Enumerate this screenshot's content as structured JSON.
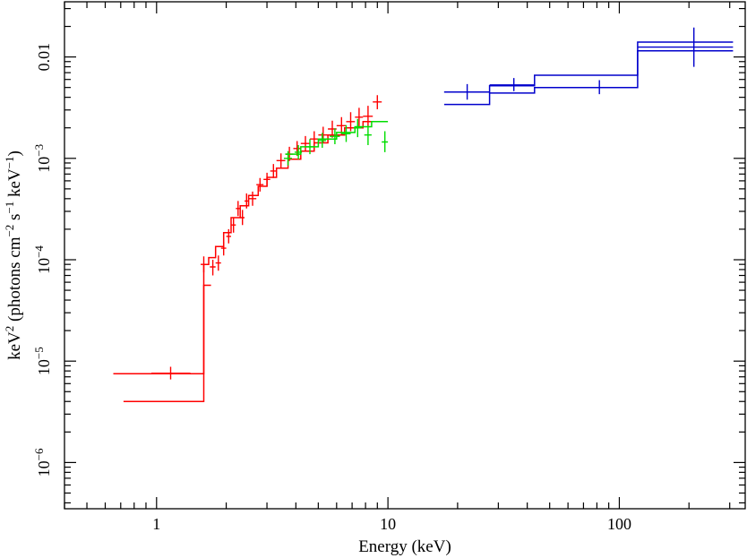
{
  "chart_data": {
    "type": "scatter",
    "title": "",
    "xlabel": "Energy (keV)",
    "ylabel_parts": {
      "a": "keV",
      "a_sup": "2",
      "b": " (photons cm",
      "b_sup": "−2",
      "c": " s",
      "c_sup": "−1",
      "d": " keV",
      "d_sup": "−1",
      "e": ")"
    },
    "x_scale": "log",
    "y_scale": "log",
    "xlim": [
      0.4,
      350
    ],
    "ylim": [
      3.5e-07,
      0.035
    ],
    "grid": false,
    "legend": "none",
    "x_ticks": [
      {
        "value": 1,
        "label": "1"
      },
      {
        "value": 10,
        "label": "10"
      },
      {
        "value": 100,
        "label": "100"
      }
    ],
    "y_ticks": [
      {
        "value": 1e-06,
        "base": "10",
        "exp": "−6",
        "label": "10−6"
      },
      {
        "value": 1e-05,
        "base": "10",
        "exp": "−5",
        "label": "10−5"
      },
      {
        "value": 0.0001,
        "base": "10",
        "exp": "−4",
        "label": "10−4"
      },
      {
        "value": 0.001,
        "base": "10",
        "exp": "−3",
        "label": "10−3"
      },
      {
        "value": 0.01,
        "base": "",
        "exp": "",
        "label": "0.01"
      }
    ],
    "series": [
      {
        "color": "#ff0000",
        "model_steps": [
          [
            0.65,
            1.6,
            7.5e-06
          ],
          [
            1.6,
            1.68,
            9e-05
          ],
          [
            1.68,
            1.8,
            0.000105
          ],
          [
            1.8,
            1.95,
            0.000135
          ],
          [
            1.95,
            2.1,
            0.000185
          ],
          [
            2.1,
            2.3,
            0.00026
          ],
          [
            2.3,
            2.5,
            0.00034
          ],
          [
            2.5,
            2.75,
            0.00043
          ],
          [
            2.75,
            3.0,
            0.00053
          ],
          [
            3.0,
            3.3,
            0.00065
          ],
          [
            3.3,
            3.7,
            0.0008
          ],
          [
            3.7,
            4.2,
            0.00098
          ],
          [
            4.2,
            4.8,
            0.00118
          ],
          [
            4.8,
            5.5,
            0.00142
          ],
          [
            5.5,
            6.5,
            0.0017
          ],
          [
            6.5,
            7.8,
            0.002
          ],
          [
            7.8,
            9.5,
            0.0023
          ]
        ],
        "model_lower": [
          [
            0.72,
            1.6,
            4e-06
          ],
          [
            1.6,
            1.72,
            5.6e-05
          ]
        ],
        "points": [
          [
            1.15,
            7.6e-06,
            0.95,
            1.4,
            6.6e-06,
            8.8e-06
          ],
          [
            1.6,
            9e-05,
            1.55,
            1.65,
            7.5e-05,
            0.000108
          ],
          [
            1.75,
            8.5e-05,
            1.7,
            1.8,
            7e-05,
            0.0001
          ],
          [
            1.85,
            9.3e-05,
            1.8,
            1.9,
            7.8e-05,
            0.00011
          ],
          [
            1.95,
            0.00013,
            1.9,
            2.0,
            0.00011,
            0.00015
          ],
          [
            2.05,
            0.00017,
            2.0,
            2.1,
            0.000145,
            0.0002
          ],
          [
            2.15,
            0.00022,
            2.1,
            2.2,
            0.000185,
            0.00026
          ],
          [
            2.25,
            0.00032,
            2.2,
            2.3,
            0.00027,
            0.00038
          ],
          [
            2.35,
            0.00026,
            2.3,
            2.4,
            0.00022,
            0.00031
          ],
          [
            2.45,
            0.00038,
            2.4,
            2.5,
            0.00032,
            0.00045
          ],
          [
            2.6,
            0.0004,
            2.5,
            2.7,
            0.00034,
            0.00047
          ],
          [
            2.8,
            0.00055,
            2.7,
            2.9,
            0.00047,
            0.00064
          ],
          [
            3.0,
            0.00062,
            2.9,
            3.1,
            0.00053,
            0.00072
          ],
          [
            3.2,
            0.00075,
            3.1,
            3.3,
            0.00064,
            0.00088
          ],
          [
            3.45,
            0.00095,
            3.3,
            3.6,
            0.0008,
            0.00112
          ],
          [
            3.75,
            0.0011,
            3.6,
            3.9,
            0.00094,
            0.0013
          ],
          [
            4.05,
            0.00125,
            3.9,
            4.2,
            0.00106,
            0.00148
          ],
          [
            4.4,
            0.0014,
            4.2,
            4.6,
            0.00118,
            0.00166
          ],
          [
            4.8,
            0.00155,
            4.6,
            5.0,
            0.0013,
            0.00185
          ],
          [
            5.25,
            0.0017,
            5.0,
            5.5,
            0.00142,
            0.00205
          ],
          [
            5.75,
            0.00195,
            5.5,
            6.0,
            0.0016,
            0.00235
          ],
          [
            6.3,
            0.0021,
            6.0,
            6.6,
            0.00172,
            0.00255
          ],
          [
            6.9,
            0.0023,
            6.6,
            7.2,
            0.00185,
            0.00285
          ],
          [
            7.5,
            0.00255,
            7.2,
            7.8,
            0.00205,
            0.00315
          ],
          [
            8.2,
            0.0026,
            7.8,
            8.6,
            0.00205,
            0.0033
          ],
          [
            9.0,
            0.0036,
            8.6,
            9.4,
            0.00305,
            0.0042
          ]
        ]
      },
      {
        "color": "#00dd00",
        "model_steps": [
          [
            3.6,
            4.2,
            0.0011
          ],
          [
            4.2,
            5.0,
            0.0013
          ],
          [
            5.0,
            6.0,
            0.00155
          ],
          [
            6.0,
            7.2,
            0.0018
          ],
          [
            7.2,
            8.5,
            0.00205
          ],
          [
            8.5,
            10.0,
            0.0023
          ]
        ],
        "points": [
          [
            3.7,
            0.001,
            3.55,
            3.85,
            0.00085,
            0.00118
          ],
          [
            4.1,
            0.00115,
            3.95,
            4.25,
            0.00098,
            0.00135
          ],
          [
            4.6,
            0.0013,
            4.4,
            4.8,
            0.0011,
            0.00155
          ],
          [
            5.2,
            0.0015,
            5.0,
            5.4,
            0.00127,
            0.00178
          ],
          [
            5.9,
            0.00165,
            5.6,
            6.2,
            0.00138,
            0.00198
          ],
          [
            6.6,
            0.00175,
            6.3,
            6.9,
            0.00145,
            0.00212
          ],
          [
            7.4,
            0.002,
            7.1,
            7.7,
            0.00162,
            0.00245
          ],
          [
            8.2,
            0.0017,
            7.9,
            8.5,
            0.00135,
            0.0021
          ],
          [
            9.7,
            0.00145,
            9.4,
            10.0,
            0.00115,
            0.00185
          ]
        ]
      },
      {
        "color": "#0000cc",
        "model_steps": [
          [
            17.5,
            27.5,
            0.0045
          ],
          [
            27.5,
            43.0,
            0.0052
          ],
          [
            43.0,
            120.0,
            0.0066
          ],
          [
            120.0,
            310.0,
            0.0115
          ]
        ],
        "model_lower": [
          [
            17.5,
            27.5,
            0.0034
          ],
          [
            27.5,
            43.0,
            0.0044
          ],
          [
            43.0,
            120.0,
            0.005
          ],
          [
            120.0,
            310.0,
            0.014
          ]
        ],
        "points": [
          [
            22.0,
            0.0045,
            17.5,
            27.5,
            0.0038,
            0.0054
          ],
          [
            35.0,
            0.0053,
            27.5,
            43.0,
            0.0046,
            0.0062
          ],
          [
            82.0,
            0.005,
            43.0,
            120.0,
            0.0043,
            0.0059
          ],
          [
            210.0,
            0.0125,
            120.0,
            310.0,
            0.008,
            0.0195
          ]
        ]
      }
    ]
  }
}
